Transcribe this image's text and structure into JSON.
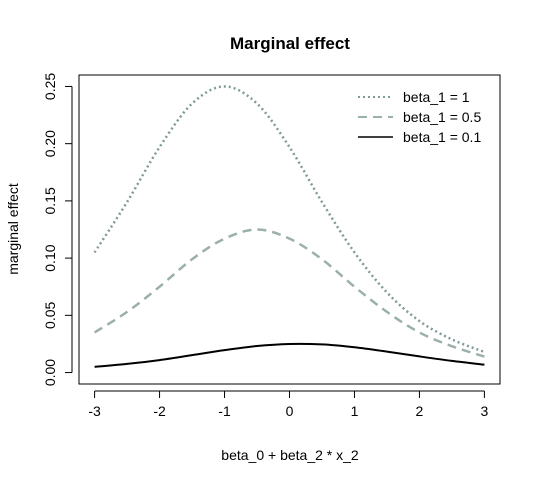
{
  "chart_data": {
    "type": "line",
    "title": "Marginal effect",
    "xlabel": "beta_0 + beta_2 * x_2",
    "ylabel": "marginal effect",
    "xlim": [
      -3.24,
      3.24
    ],
    "ylim": [
      -0.01,
      0.26
    ],
    "xticks": [
      -3,
      -2,
      -1,
      0,
      1,
      2,
      3
    ],
    "xtick_labels": [
      "-3",
      "-2",
      "-1",
      "0",
      "1",
      "2",
      "3"
    ],
    "yticks": [
      0.0,
      0.05,
      0.1,
      0.15,
      0.2,
      0.25
    ],
    "ytick_labels": [
      "0.00",
      "0.05",
      "0.10",
      "0.15",
      "0.20",
      "0.25"
    ],
    "grid": false,
    "legend_position": "top-right",
    "x": [
      -3.0,
      -2.5,
      -2.0,
      -1.5,
      -1.0,
      -0.5,
      0.0,
      0.5,
      1.0,
      1.5,
      2.0,
      2.5,
      3.0
    ],
    "series": [
      {
        "name": "beta_1 = 1",
        "style": "dotted",
        "color": "#7f9a99",
        "values": [
          0.105,
          0.149,
          0.197,
          0.235,
          0.25,
          0.235,
          0.197,
          0.149,
          0.105,
          0.07,
          0.045,
          0.029,
          0.018
        ]
      },
      {
        "name": "beta_1 = 0.5",
        "style": "dashed",
        "color": "#9bb0ab",
        "values": [
          0.035,
          0.053,
          0.075,
          0.099,
          0.117,
          0.125,
          0.117,
          0.099,
          0.075,
          0.053,
          0.035,
          0.023,
          0.014
        ]
      },
      {
        "name": "beta_1 = 0.1",
        "style": "solid",
        "color": "#000000",
        "values": [
          0.005,
          0.0076,
          0.0109,
          0.0152,
          0.0196,
          0.0232,
          0.025,
          0.0246,
          0.0221,
          0.0183,
          0.0141,
          0.0102,
          0.0069
        ]
      }
    ]
  }
}
